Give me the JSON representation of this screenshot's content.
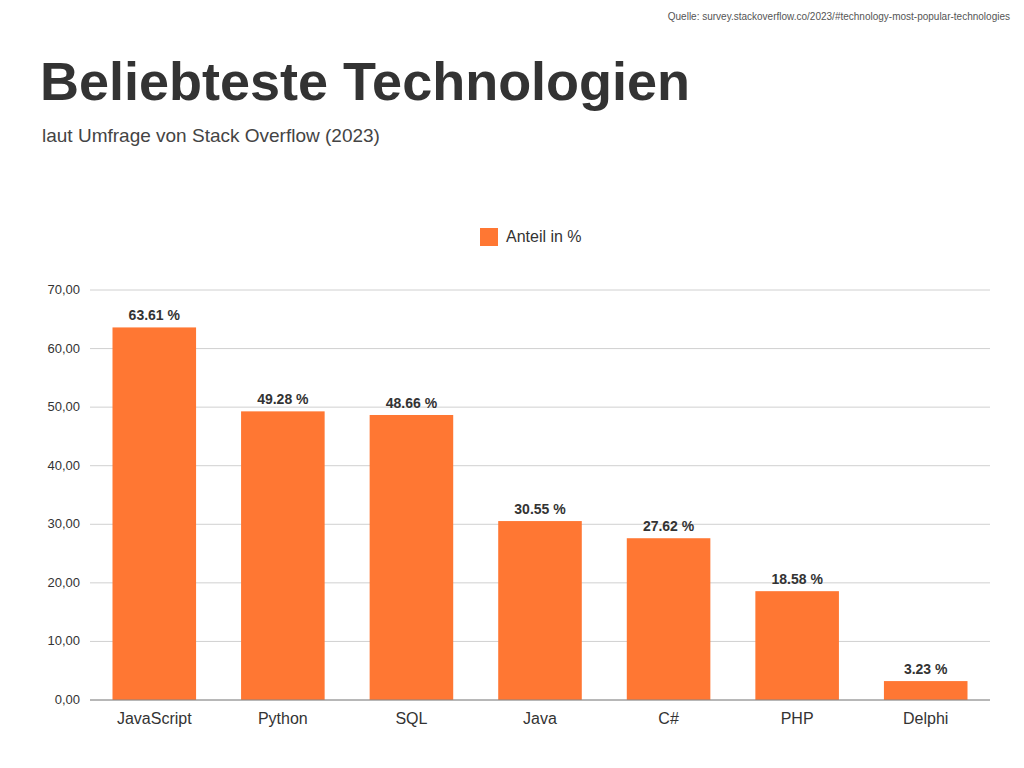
{
  "chart_data": {
    "type": "bar",
    "title": "Beliebteste Technologien",
    "subtitle": "laut Umfrage von Stack Overflow (2023)",
    "source": "Quelle: survey.stackoverflow.co/2023/#technology-most-popular-technologies",
    "categories": [
      "JavaScript",
      "Python",
      "SQL",
      "Java",
      "C#",
      "PHP",
      "Delphi"
    ],
    "series": [
      {
        "name": "Anteil in %",
        "color": "#FF7733",
        "values": [
          63.61,
          49.28,
          48.66,
          30.55,
          27.62,
          18.58,
          3.23
        ],
        "value_labels": [
          "63.61 %",
          "49.28 %",
          "48.66 %",
          "30.55 %",
          "27.62 %",
          "18.58 %",
          "3.23 %"
        ]
      }
    ],
    "ylim": [
      0,
      70
    ],
    "yticks": [
      {
        "value": 0,
        "label": "0,00"
      },
      {
        "value": 10,
        "label": "10,00"
      },
      {
        "value": 20,
        "label": "20,00"
      },
      {
        "value": 30,
        "label": "30,00"
      },
      {
        "value": 40,
        "label": "40,00"
      },
      {
        "value": 50,
        "label": "50,00"
      },
      {
        "value": 60,
        "label": "60,00"
      },
      {
        "value": 70,
        "label": "70,00"
      }
    ],
    "grid": true,
    "legend": "top",
    "data_labels": true
  }
}
